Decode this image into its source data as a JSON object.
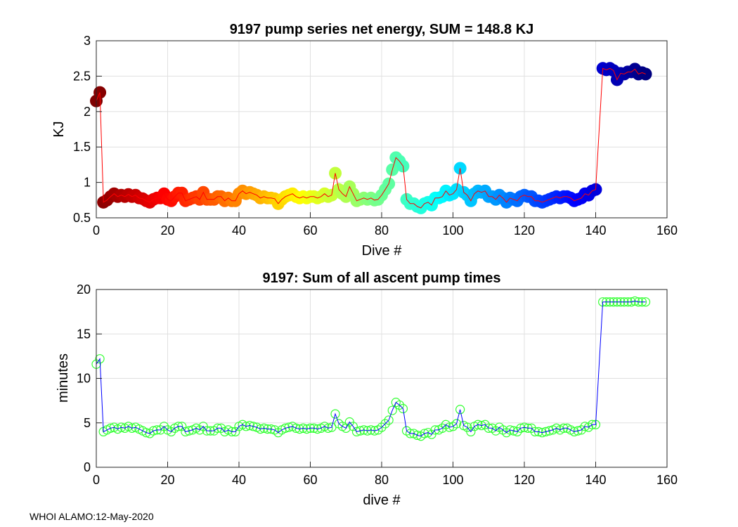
{
  "footer": "WHOI ALAMO:12-May-2020",
  "chart_data": [
    {
      "type": "line",
      "title": "9197 pump series net energy, SUM = 148.8 KJ",
      "xlabel": "Dive #",
      "ylabel": "KJ",
      "xlim": [
        0,
        160
      ],
      "ylim": [
        0.5,
        3
      ],
      "xticks": [
        0,
        20,
        40,
        60,
        80,
        100,
        120,
        140,
        160
      ],
      "yticks": [
        0.5,
        1,
        1.5,
        2,
        2.5,
        3
      ],
      "ytick_labels": [
        "0.5",
        "1",
        "1.5",
        "2",
        "2.5",
        "3"
      ],
      "grid": true,
      "marker_style": "filled circles colored by dive (dark red to dark blue, jet colormap)",
      "line_color": "#ff0000",
      "series": [
        {
          "name": "net energy",
          "x": [
            0,
            1,
            2,
            3,
            4,
            5,
            6,
            7,
            8,
            9,
            10,
            11,
            12,
            13,
            14,
            15,
            16,
            17,
            18,
            19,
            20,
            21,
            22,
            23,
            24,
            25,
            26,
            27,
            28,
            29,
            30,
            31,
            32,
            33,
            34,
            35,
            36,
            37,
            38,
            39,
            40,
            41,
            42,
            43,
            44,
            45,
            46,
            47,
            48,
            49,
            50,
            51,
            52,
            53,
            54,
            55,
            56,
            57,
            58,
            59,
            60,
            61,
            62,
            63,
            64,
            65,
            66,
            67,
            68,
            69,
            70,
            71,
            72,
            73,
            74,
            75,
            76,
            77,
            78,
            79,
            80,
            81,
            82,
            83,
            84,
            85,
            86,
            87,
            88,
            89,
            90,
            91,
            92,
            93,
            94,
            95,
            96,
            97,
            98,
            99,
            100,
            101,
            102,
            103,
            104,
            105,
            106,
            107,
            108,
            109,
            110,
            111,
            112,
            113,
            114,
            115,
            116,
            117,
            118,
            119,
            120,
            121,
            122,
            123,
            124,
            125,
            126,
            127,
            128,
            129,
            130,
            131,
            132,
            133,
            134,
            135,
            136,
            137,
            138,
            139,
            140,
            142,
            143,
            144,
            145,
            146,
            147,
            148,
            149,
            150,
            151,
            152,
            153,
            154
          ],
          "y": [
            2.15,
            2.27,
            0.72,
            0.75,
            0.8,
            0.84,
            0.8,
            0.82,
            0.8,
            0.83,
            0.8,
            0.82,
            0.78,
            0.77,
            0.74,
            0.72,
            0.76,
            0.78,
            0.78,
            0.84,
            0.76,
            0.74,
            0.8,
            0.85,
            0.85,
            0.74,
            0.76,
            0.78,
            0.8,
            0.76,
            0.86,
            0.76,
            0.76,
            0.76,
            0.8,
            0.8,
            0.74,
            0.78,
            0.74,
            0.74,
            0.84,
            0.88,
            0.84,
            0.86,
            0.84,
            0.82,
            0.78,
            0.8,
            0.78,
            0.78,
            0.77,
            0.7,
            0.76,
            0.8,
            0.82,
            0.84,
            0.8,
            0.78,
            0.8,
            0.78,
            0.8,
            0.8,
            0.78,
            0.8,
            0.84,
            0.8,
            0.82,
            1.13,
            0.9,
            0.84,
            0.8,
            0.94,
            0.84,
            0.74,
            0.76,
            0.78,
            0.76,
            0.78,
            0.75,
            0.76,
            0.82,
            0.9,
            0.98,
            1.18,
            1.35,
            1.3,
            1.23,
            0.76,
            0.7,
            0.7,
            0.66,
            0.64,
            0.7,
            0.72,
            0.68,
            0.78,
            0.78,
            0.8,
            0.88,
            0.82,
            0.84,
            0.9,
            1.2,
            0.86,
            0.82,
            0.74,
            0.84,
            0.88,
            0.86,
            0.88,
            0.8,
            0.8,
            0.76,
            0.82,
            0.78,
            0.72,
            0.78,
            0.76,
            0.74,
            0.8,
            0.82,
            0.8,
            0.8,
            0.74,
            0.74,
            0.72,
            0.74,
            0.76,
            0.78,
            0.8,
            0.78,
            0.8,
            0.8,
            0.78,
            0.74,
            0.76,
            0.78,
            0.84,
            0.82,
            0.88,
            0.9,
            2.61,
            2.59,
            2.61,
            2.58,
            2.45,
            2.54,
            2.53,
            2.56,
            2.56,
            2.6,
            2.53,
            2.55,
            2.53
          ]
        }
      ]
    },
    {
      "type": "line",
      "title": "9197: Sum of all ascent pump times",
      "xlabel": "dive #",
      "ylabel": "minutes",
      "xlim": [
        0,
        160
      ],
      "ylim": [
        0,
        20
      ],
      "xticks": [
        0,
        20,
        40,
        60,
        80,
        100,
        120,
        140,
        160
      ],
      "yticks": [
        0,
        5,
        10,
        15,
        20
      ],
      "ytick_labels": [
        "0",
        "5",
        "10",
        "15",
        "20"
      ],
      "grid": true,
      "marker_style": "open green circles",
      "line_color": "#0000ff",
      "marker_color": "#33ff33",
      "series": [
        {
          "name": "ascent pump time",
          "x": [
            0,
            1,
            2,
            3,
            4,
            5,
            6,
            7,
            8,
            9,
            10,
            11,
            12,
            13,
            14,
            15,
            16,
            17,
            18,
            19,
            20,
            21,
            22,
            23,
            24,
            25,
            26,
            27,
            28,
            29,
            30,
            31,
            32,
            33,
            34,
            35,
            36,
            37,
            38,
            39,
            40,
            41,
            42,
            43,
            44,
            45,
            46,
            47,
            48,
            49,
            50,
            51,
            52,
            53,
            54,
            55,
            56,
            57,
            58,
            59,
            60,
            61,
            62,
            63,
            64,
            65,
            66,
            67,
            68,
            69,
            70,
            71,
            72,
            73,
            74,
            75,
            76,
            77,
            78,
            79,
            80,
            81,
            82,
            83,
            84,
            85,
            86,
            87,
            88,
            89,
            90,
            91,
            92,
            93,
            94,
            95,
            96,
            97,
            98,
            99,
            100,
            101,
            102,
            103,
            104,
            105,
            106,
            107,
            108,
            109,
            110,
            111,
            112,
            113,
            114,
            115,
            116,
            117,
            118,
            119,
            120,
            121,
            122,
            123,
            124,
            125,
            126,
            127,
            128,
            129,
            130,
            131,
            132,
            133,
            134,
            135,
            136,
            137,
            138,
            139,
            140,
            142,
            143,
            144,
            145,
            146,
            147,
            148,
            149,
            150,
            151,
            152,
            153,
            154
          ],
          "y": [
            11.6,
            12.2,
            4.0,
            4.2,
            4.4,
            4.5,
            4.3,
            4.5,
            4.4,
            4.6,
            4.4,
            4.5,
            4.3,
            4.1,
            3.9,
            3.8,
            4.1,
            4.2,
            4.2,
            4.6,
            4.2,
            4.0,
            4.4,
            4.6,
            4.6,
            4.0,
            4.1,
            4.2,
            4.4,
            4.2,
            4.6,
            4.1,
            4.1,
            4.1,
            4.4,
            4.4,
            4.0,
            4.2,
            4.0,
            4.0,
            4.6,
            4.8,
            4.6,
            4.7,
            4.6,
            4.5,
            4.3,
            4.4,
            4.3,
            4.3,
            4.2,
            3.9,
            4.2,
            4.4,
            4.5,
            4.6,
            4.4,
            4.3,
            4.4,
            4.3,
            4.4,
            4.4,
            4.3,
            4.4,
            4.6,
            4.4,
            4.5,
            6.0,
            4.9,
            4.6,
            4.4,
            5.1,
            4.6,
            4.0,
            4.1,
            4.2,
            4.1,
            4.2,
            4.1,
            4.2,
            4.5,
            4.9,
            5.3,
            6.4,
            7.3,
            7.0,
            6.6,
            4.1,
            3.8,
            3.8,
            3.6,
            3.5,
            3.8,
            3.9,
            3.7,
            4.2,
            4.2,
            4.4,
            4.8,
            4.5,
            4.6,
            4.9,
            6.5,
            4.7,
            4.5,
            4.0,
            4.6,
            4.8,
            4.7,
            4.8,
            4.4,
            4.4,
            4.1,
            4.5,
            4.2,
            3.9,
            4.2,
            4.1,
            4.0,
            4.4,
            4.5,
            4.4,
            4.4,
            4.0,
            4.0,
            3.9,
            4.0,
            4.1,
            4.2,
            4.4,
            4.2,
            4.4,
            4.4,
            4.2,
            4.0,
            4.1,
            4.2,
            4.6,
            4.5,
            4.8,
            4.8,
            18.6,
            18.6,
            18.6,
            18.6,
            18.6,
            18.6,
            18.6,
            18.6,
            18.6,
            18.7,
            18.6,
            18.6,
            18.6
          ]
        }
      ]
    }
  ]
}
